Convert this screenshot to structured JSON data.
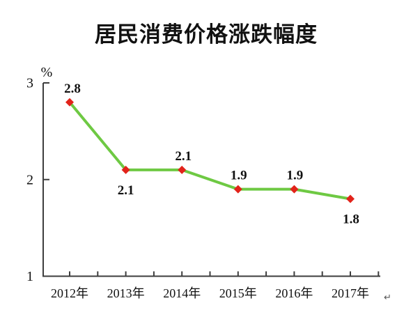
{
  "page": {
    "background": "#ffffff",
    "return_mark": "↵"
  },
  "chart_data": {
    "type": "line",
    "title": "居民消费价格涨跌幅度",
    "unit_label": "%",
    "categories": [
      "2012年",
      "2013年",
      "2014年",
      "2015年",
      "2016年",
      "2017年"
    ],
    "series": [
      {
        "name": "居民消费价格涨跌幅度",
        "values": [
          2.8,
          2.1,
          2.1,
          1.9,
          1.9,
          1.8
        ]
      }
    ],
    "data_labels": [
      "2.8",
      "2.1",
      "2.1",
      "1.9",
      "1.9",
      "1.8"
    ],
    "data_label_positions": [
      "above",
      "below",
      "above",
      "above",
      "above",
      "below"
    ],
    "xlabel": "",
    "ylabel": "%",
    "ylim": [
      1,
      3
    ],
    "y_ticks": [
      1,
      2,
      3
    ],
    "grid": false,
    "legend_position": "none",
    "line_color": "#6ec943",
    "marker_color": "#e2231a",
    "marker_shape": "diamond",
    "axis_color": "#3d3d3d",
    "text_color": "#111111"
  }
}
